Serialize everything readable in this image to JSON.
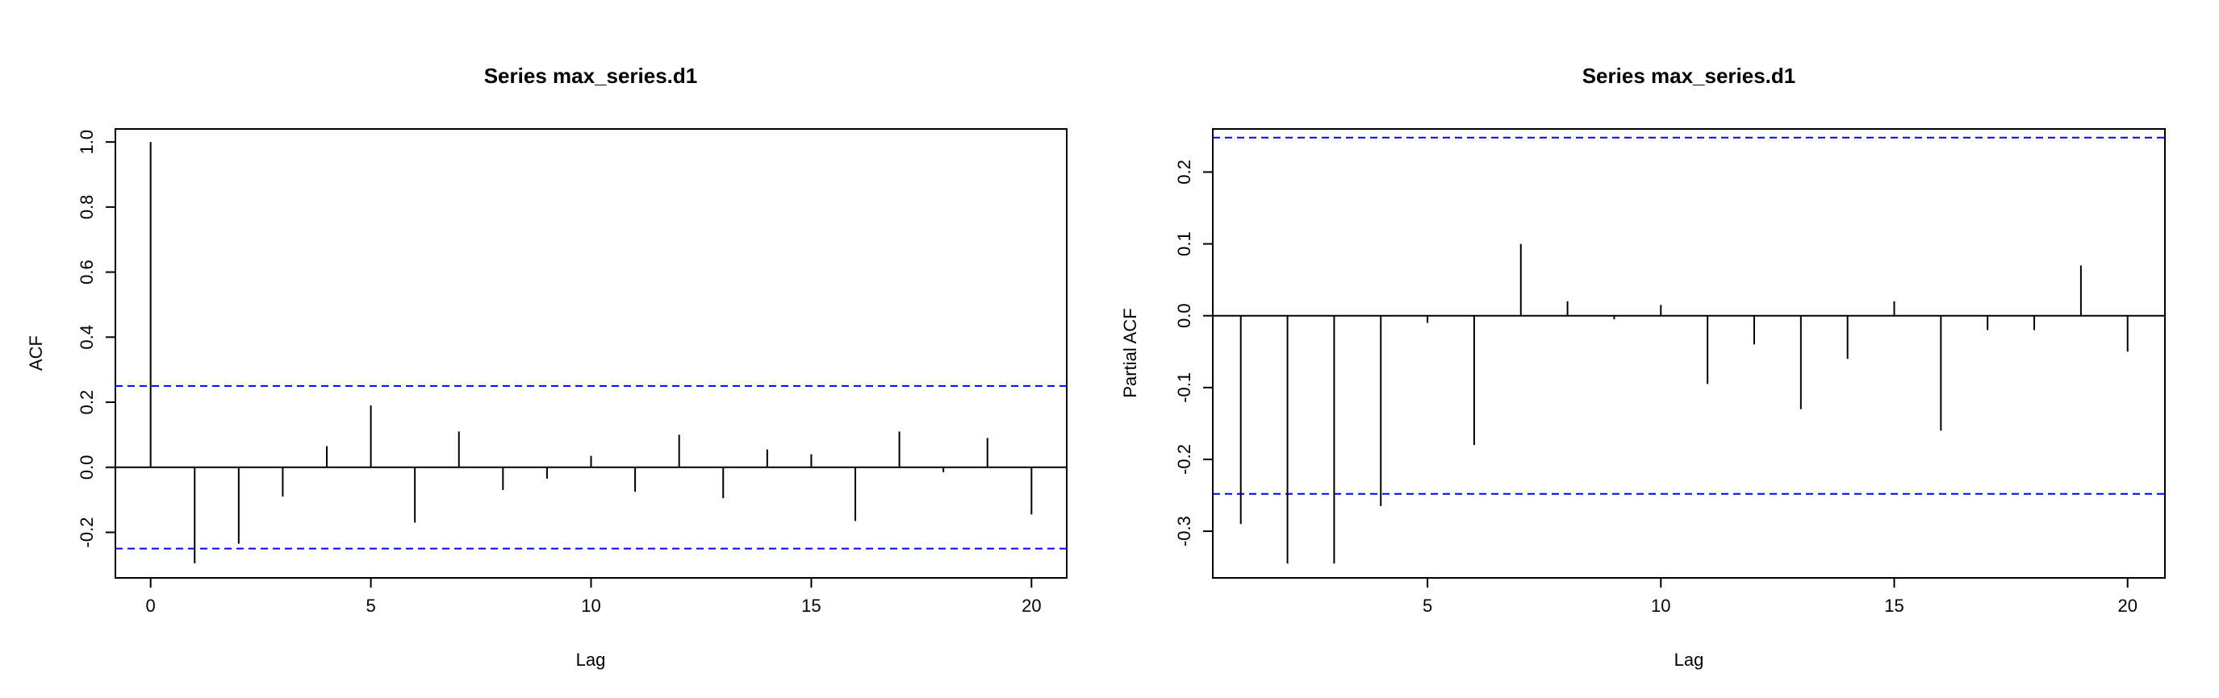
{
  "chart_data": [
    {
      "type": "bar",
      "title": "Series  max_series.d1",
      "xlabel": "Lag",
      "ylabel": "ACF",
      "xlim": [
        -0.8,
        20.8
      ],
      "ylim": [
        -0.34,
        1.04
      ],
      "xticks": [
        0,
        5,
        10,
        15,
        20
      ],
      "yticks": [
        -0.2,
        0.0,
        0.2,
        0.4,
        0.6,
        0.8,
        1.0
      ],
      "ytick_labels": [
        "-0.2",
        "0.0",
        "0.2",
        "0.4",
        "0.6",
        "0.8",
        "1.0"
      ],
      "x": [
        0,
        1,
        2,
        3,
        4,
        5,
        6,
        7,
        8,
        9,
        10,
        11,
        12,
        13,
        14,
        15,
        16,
        17,
        18,
        19,
        20
      ],
      "values": [
        1.0,
        -0.295,
        -0.235,
        -0.09,
        0.065,
        0.19,
        -0.17,
        0.11,
        -0.07,
        -0.035,
        0.035,
        -0.075,
        0.1,
        -0.095,
        0.055,
        0.04,
        -0.165,
        0.11,
        -0.015,
        0.09,
        -0.145
      ],
      "confidence_band": 0.25,
      "zero_line": true,
      "grid": false
    },
    {
      "type": "bar",
      "title": "Series  max_series.d1",
      "xlabel": "Lag",
      "ylabel": "Partial ACF",
      "xlim": [
        0.4,
        20.8
      ],
      "ylim": [
        -0.365,
        0.26
      ],
      "xticks": [
        5,
        10,
        15,
        20
      ],
      "yticks": [
        -0.3,
        -0.2,
        -0.1,
        0.0,
        0.1,
        0.2
      ],
      "ytick_labels": [
        "-0.3",
        "-0.2",
        "-0.1",
        "0.0",
        "0.1",
        "0.2"
      ],
      "x": [
        1,
        2,
        3,
        4,
        5,
        6,
        7,
        8,
        9,
        10,
        11,
        12,
        13,
        14,
        15,
        16,
        17,
        18,
        19,
        20
      ],
      "values": [
        -0.29,
        -0.345,
        -0.345,
        -0.265,
        -0.01,
        -0.18,
        0.1,
        0.02,
        -0.005,
        0.015,
        -0.095,
        -0.04,
        -0.13,
        -0.06,
        0.02,
        -0.16,
        -0.02,
        -0.02,
        0.07,
        -0.05
      ],
      "confidence_band": 0.248,
      "zero_line": true,
      "grid": false
    }
  ],
  "colors": {
    "axis": "#000000",
    "bars": "#000000",
    "band": "#0000ff"
  }
}
